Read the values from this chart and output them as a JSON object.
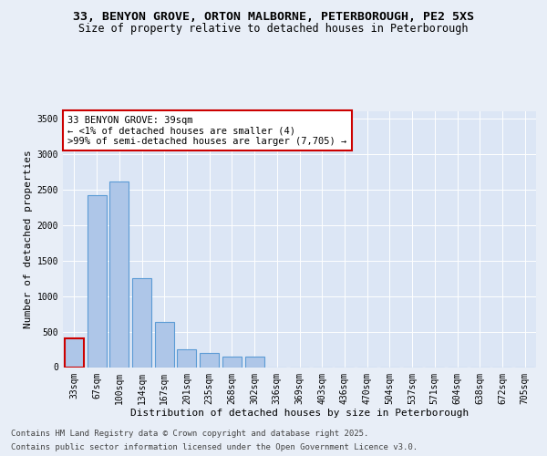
{
  "title_line1": "33, BENYON GROVE, ORTON MALBORNE, PETERBOROUGH, PE2 5XS",
  "title_line2": "Size of property relative to detached houses in Peterborough",
  "xlabel": "Distribution of detached houses by size in Peterborough",
  "ylabel": "Number of detached properties",
  "categories": [
    "33sqm",
    "67sqm",
    "100sqm",
    "134sqm",
    "167sqm",
    "201sqm",
    "235sqm",
    "268sqm",
    "302sqm",
    "336sqm",
    "369sqm",
    "403sqm",
    "436sqm",
    "470sqm",
    "504sqm",
    "537sqm",
    "571sqm",
    "604sqm",
    "638sqm",
    "672sqm",
    "705sqm"
  ],
  "values": [
    400,
    2420,
    2620,
    1250,
    640,
    250,
    195,
    145,
    145,
    0,
    0,
    0,
    0,
    0,
    0,
    0,
    0,
    0,
    0,
    0,
    0
  ],
  "bar_color": "#aec6e8",
  "bar_edge_color": "#5b9bd5",
  "highlight_bar_index": 0,
  "highlight_bar_edge_color": "#cc0000",
  "annotation_text": "33 BENYON GROVE: 39sqm\n← <1% of detached houses are smaller (4)\n>99% of semi-detached houses are larger (7,705) →",
  "annotation_box_color": "#ffffff",
  "annotation_box_edge_color": "#cc0000",
  "ylim": [
    0,
    3600
  ],
  "yticks": [
    0,
    500,
    1000,
    1500,
    2000,
    2500,
    3000,
    3500
  ],
  "background_color": "#e8eef7",
  "plot_bg_color": "#dce6f5",
  "footer_line1": "Contains HM Land Registry data © Crown copyright and database right 2025.",
  "footer_line2": "Contains public sector information licensed under the Open Government Licence v3.0.",
  "title_fontsize": 9.5,
  "subtitle_fontsize": 8.5,
  "tick_fontsize": 7,
  "label_fontsize": 8,
  "annotation_fontsize": 7.5,
  "footer_fontsize": 6.5
}
